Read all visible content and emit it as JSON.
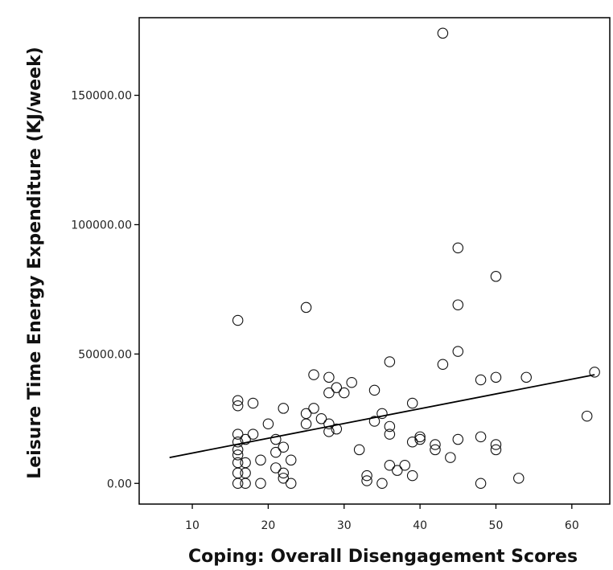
{
  "chart_data": {
    "type": "scatter",
    "xlabel": "Coping: Overall Disengagement Scores",
    "ylabel": "Leisure Time Energy Expenditure (KJ/week)",
    "xlim": [
      3,
      65
    ],
    "ylim": [
      -8000,
      180000
    ],
    "x_ticks": [
      10,
      20,
      30,
      40,
      50,
      60
    ],
    "x_tick_labels": [
      "10",
      "20",
      "30",
      "40",
      "50",
      "60"
    ],
    "y_ticks": [
      0,
      50000,
      100000,
      150000
    ],
    "y_tick_labels": [
      "0.00",
      "50000.00",
      "100000.00",
      "150000.00"
    ],
    "grid": false,
    "fit_line": {
      "x": [
        7,
        63
      ],
      "y": [
        10000,
        42000
      ]
    },
    "points": [
      {
        "x": 16,
        "y": 63000
      },
      {
        "x": 16,
        "y": 32000
      },
      {
        "x": 16,
        "y": 30000
      },
      {
        "x": 16,
        "y": 19000
      },
      {
        "x": 16,
        "y": 16000
      },
      {
        "x": 16,
        "y": 13000
      },
      {
        "x": 16,
        "y": 11000
      },
      {
        "x": 16,
        "y": 8000
      },
      {
        "x": 16,
        "y": 4000
      },
      {
        "x": 16,
        "y": 0
      },
      {
        "x": 17,
        "y": 17000
      },
      {
        "x": 17,
        "y": 8000
      },
      {
        "x": 17,
        "y": 4000
      },
      {
        "x": 17,
        "y": 0
      },
      {
        "x": 18,
        "y": 31000
      },
      {
        "x": 18,
        "y": 19000
      },
      {
        "x": 19,
        "y": 9000
      },
      {
        "x": 19,
        "y": 0
      },
      {
        "x": 20,
        "y": 23000
      },
      {
        "x": 21,
        "y": 17000
      },
      {
        "x": 21,
        "y": 12000
      },
      {
        "x": 21,
        "y": 6000
      },
      {
        "x": 22,
        "y": 29000
      },
      {
        "x": 22,
        "y": 14000
      },
      {
        "x": 22,
        "y": 4000
      },
      {
        "x": 22,
        "y": 2000
      },
      {
        "x": 23,
        "y": 9000
      },
      {
        "x": 23,
        "y": 0
      },
      {
        "x": 25,
        "y": 68000
      },
      {
        "x": 25,
        "y": 27000
      },
      {
        "x": 25,
        "y": 23000
      },
      {
        "x": 26,
        "y": 42000
      },
      {
        "x": 26,
        "y": 29000
      },
      {
        "x": 27,
        "y": 25000
      },
      {
        "x": 28,
        "y": 41000
      },
      {
        "x": 28,
        "y": 35000
      },
      {
        "x": 28,
        "y": 23000
      },
      {
        "x": 28,
        "y": 20000
      },
      {
        "x": 29,
        "y": 37000
      },
      {
        "x": 29,
        "y": 21000
      },
      {
        "x": 30,
        "y": 35000
      },
      {
        "x": 31,
        "y": 39000
      },
      {
        "x": 32,
        "y": 13000
      },
      {
        "x": 33,
        "y": 3000
      },
      {
        "x": 33,
        "y": 1000
      },
      {
        "x": 34,
        "y": 36000
      },
      {
        "x": 34,
        "y": 24000
      },
      {
        "x": 35,
        "y": 27000
      },
      {
        "x": 35,
        "y": 0
      },
      {
        "x": 36,
        "y": 47000
      },
      {
        "x": 36,
        "y": 22000
      },
      {
        "x": 36,
        "y": 19000
      },
      {
        "x": 36,
        "y": 7000
      },
      {
        "x": 37,
        "y": 5000
      },
      {
        "x": 38,
        "y": 7000
      },
      {
        "x": 39,
        "y": 31000
      },
      {
        "x": 39,
        "y": 16000
      },
      {
        "x": 39,
        "y": 3000
      },
      {
        "x": 40,
        "y": 18000
      },
      {
        "x": 40,
        "y": 17000
      },
      {
        "x": 42,
        "y": 15000
      },
      {
        "x": 42,
        "y": 13000
      },
      {
        "x": 43,
        "y": 174000
      },
      {
        "x": 43,
        "y": 46000
      },
      {
        "x": 44,
        "y": 10000
      },
      {
        "x": 45,
        "y": 91000
      },
      {
        "x": 45,
        "y": 69000
      },
      {
        "x": 45,
        "y": 51000
      },
      {
        "x": 45,
        "y": 17000
      },
      {
        "x": 48,
        "y": 40000
      },
      {
        "x": 48,
        "y": 18000
      },
      {
        "x": 48,
        "y": 0
      },
      {
        "x": 50,
        "y": 80000
      },
      {
        "x": 50,
        "y": 41000
      },
      {
        "x": 50,
        "y": 15000
      },
      {
        "x": 50,
        "y": 13000
      },
      {
        "x": 53,
        "y": 2000
      },
      {
        "x": 54,
        "y": 41000
      },
      {
        "x": 62,
        "y": 26000
      },
      {
        "x": 63,
        "y": 43000
      }
    ]
  }
}
